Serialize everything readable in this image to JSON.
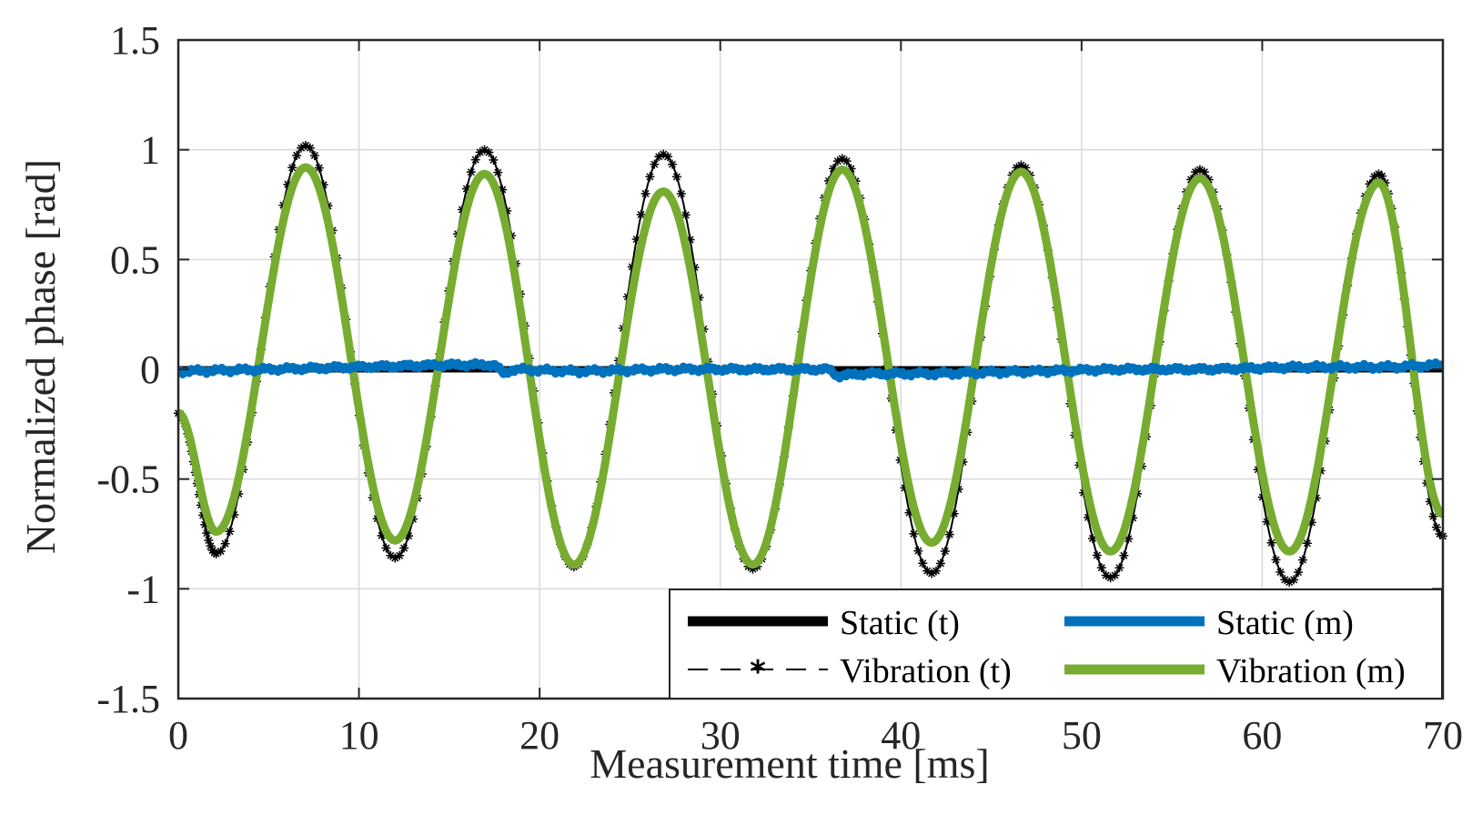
{
  "chart_data": {
    "type": "line",
    "title": "",
    "xlabel": "Measurement time [ms]",
    "ylabel": "Normalized phase [rad]",
    "xlim": [
      0,
      70
    ],
    "ylim": [
      -1.5,
      1.5
    ],
    "grid": true,
    "xticks": [
      0,
      10,
      20,
      30,
      40,
      50,
      60,
      70
    ],
    "xtick_labels": [
      "0",
      "10",
      "20",
      "30",
      "40",
      "50",
      "60",
      "70"
    ],
    "yticks": [
      -1.5,
      -1,
      -0.5,
      0,
      0.5,
      1,
      1.5
    ],
    "ytick_labels": [
      "-1.5",
      "-1",
      "-0.5",
      "0",
      "0.5",
      "1",
      "1.5"
    ],
    "legend_position": "bottom-right",
    "series": [
      {
        "name": "Static (t)",
        "color": "#000000",
        "style": "solid-thick",
        "x": [
          0,
          70
        ],
        "y": [
          0.0,
          0.0
        ]
      },
      {
        "name": "Static (m)",
        "color": "#0072bd",
        "style": "solid-thick-noisy",
        "x": [
          0,
          5,
          10,
          15,
          17.5,
          18,
          18.5,
          22,
          27,
          32,
          36,
          36.5,
          38,
          42,
          47,
          52,
          57,
          62,
          67,
          70
        ],
        "y": [
          -0.01,
          0.0,
          0.01,
          0.02,
          0.02,
          -0.02,
          0.0,
          -0.01,
          0.0,
          0.0,
          0.0,
          -0.03,
          -0.02,
          -0.02,
          -0.01,
          0.0,
          0.0,
          0.01,
          0.01,
          0.02
        ]
      },
      {
        "name": "Vibration (t)",
        "color": "#000000",
        "style": "dash-asterisk",
        "x": [
          0,
          2.1,
          7.05,
          12.0,
          16.95,
          21.9,
          26.85,
          31.8,
          36.75,
          41.7,
          46.65,
          51.6,
          56.55,
          61.5,
          66.45,
          70.0
        ],
        "y": [
          -0.2,
          -0.84,
          1.02,
          -0.86,
          1.0,
          -0.9,
          0.98,
          -0.91,
          0.96,
          -0.93,
          0.93,
          -0.95,
          0.91,
          -0.97,
          0.89,
          -0.76
        ]
      },
      {
        "name": "Vibration (m)",
        "color": "#77ac30",
        "style": "solid-thick",
        "x": [
          0,
          2.1,
          7.05,
          12.0,
          16.95,
          21.9,
          26.85,
          31.8,
          36.75,
          41.7,
          46.65,
          51.6,
          56.55,
          61.5,
          66.45,
          70.0
        ],
        "y": [
          -0.2,
          -0.74,
          0.92,
          -0.78,
          0.89,
          -0.89,
          0.81,
          -0.89,
          0.91,
          -0.79,
          0.9,
          -0.83,
          0.87,
          -0.83,
          0.85,
          -0.66
        ]
      }
    ]
  }
}
